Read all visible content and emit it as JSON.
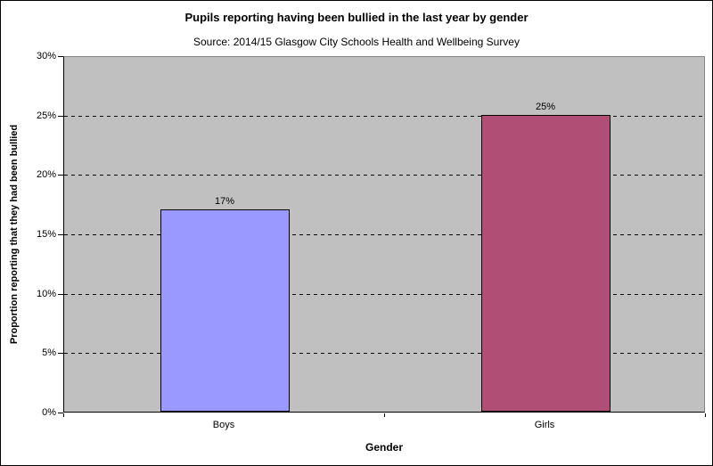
{
  "chart": {
    "title": "Pupils reporting having been bullied in the last year by gender",
    "subtitle": "Source: 2014/15 Glasgow City Schools Health and Wellbeing Survey",
    "x_axis_title": "Gender",
    "y_axis_title": "Proportion reporting that they had been bullied"
  },
  "chart_data": {
    "type": "bar",
    "title": "Pupils reporting having been bullied in the last year by gender",
    "subtitle": "Source: 2014/15 Glasgow City Schools Health and Wellbeing Survey",
    "xlabel": "Gender",
    "ylabel": "Proportion reporting that they had been bullied",
    "categories": [
      "Boys",
      "Girls"
    ],
    "values": [
      17,
      25
    ],
    "value_labels": [
      "17%",
      "25%"
    ],
    "bar_colors": [
      "#9999ff",
      "#b04e75"
    ],
    "ylim": [
      0,
      30
    ],
    "y_tick_values": [
      0,
      5,
      10,
      15,
      20,
      25,
      30
    ],
    "y_tick_labels": [
      "0%",
      "5%",
      "10%",
      "15%",
      "20%",
      "25%",
      "30%"
    ],
    "grid": "horizontal-dashed",
    "plot_background": "#c0c0c0",
    "legend": "none"
  }
}
